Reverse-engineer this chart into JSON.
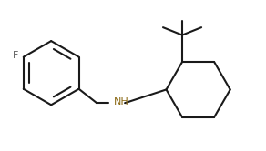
{
  "bg_color": "#ffffff",
  "line_color": "#1a1a1a",
  "line_width": 1.5,
  "F_color": "#555555",
  "NH_color": "#8B6914",
  "font_size_F": 8,
  "font_size_NH": 8
}
